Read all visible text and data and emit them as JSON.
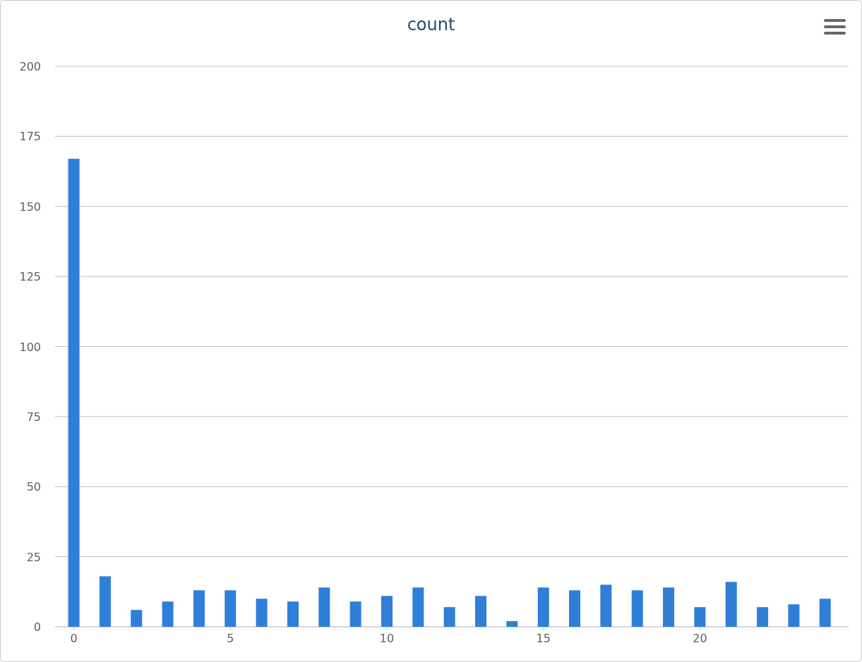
{
  "chart_data": {
    "type": "bar",
    "title": "count",
    "x": [
      0,
      1,
      2,
      3,
      4,
      5,
      6,
      7,
      8,
      9,
      10,
      11,
      12,
      13,
      14,
      15,
      16,
      17,
      18,
      19,
      20,
      21,
      22,
      23,
      24
    ],
    "values": [
      167,
      18,
      6,
      9,
      13,
      13,
      10,
      9,
      14,
      9,
      11,
      14,
      7,
      11,
      2,
      14,
      13,
      15,
      13,
      14,
      7,
      16,
      7,
      8,
      10
    ],
    "color": "#2f7ed8",
    "xlim": [
      -0.6,
      24.75
    ],
    "xticks": [
      0,
      5,
      10,
      15,
      20
    ],
    "ylim": [
      0,
      200
    ],
    "yticks": [
      0,
      25,
      50,
      75,
      100,
      125,
      150,
      175,
      200
    ],
    "grid": "y"
  }
}
